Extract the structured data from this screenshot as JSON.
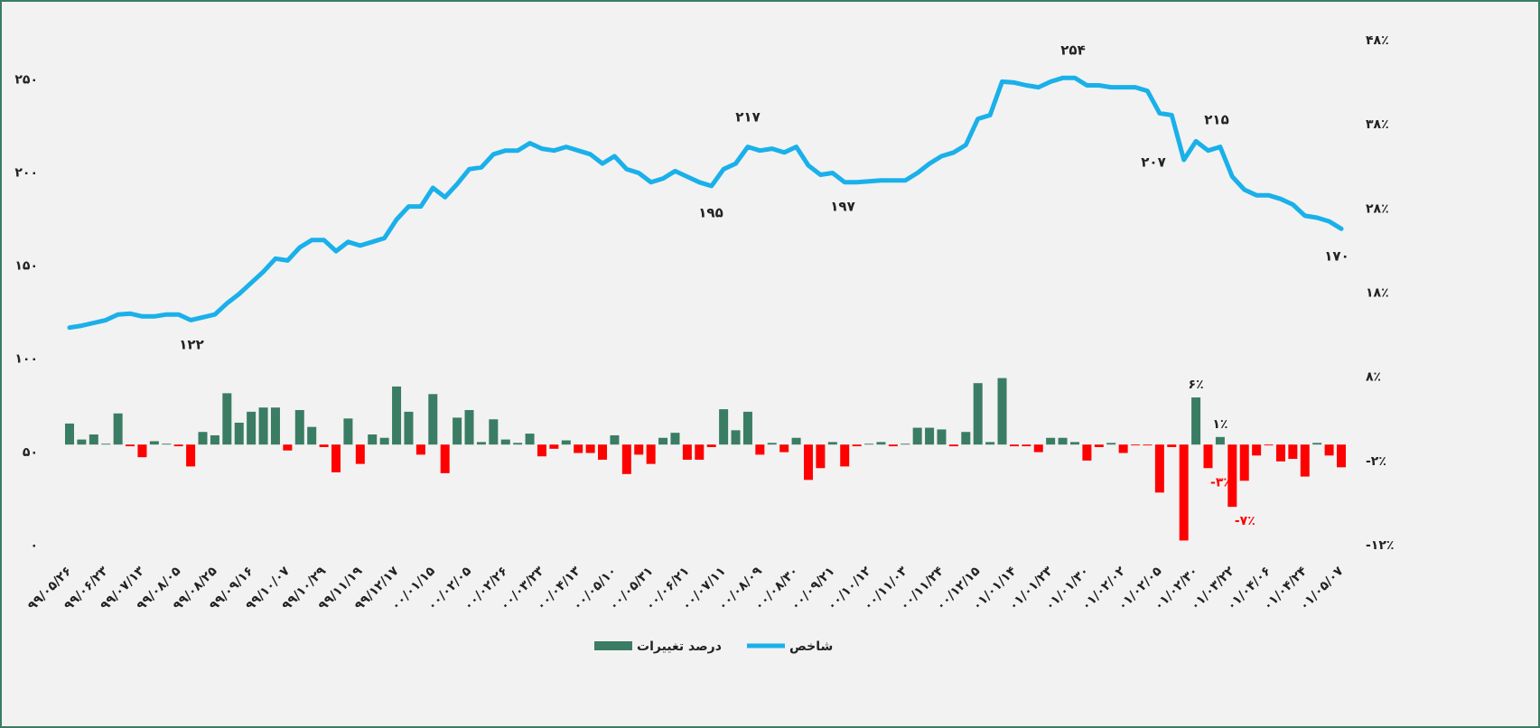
{
  "chart_data": {
    "type": "bar-line",
    "categories": [
      "۹۹/۰۵/۲۶",
      null,
      null,
      "۹۹/۰۶/۲۳",
      null,
      null,
      "۹۹/۰۷/۱۳",
      null,
      null,
      "۹۹/۰۸/۰۵",
      null,
      null,
      "۹۹/۰۸/۲۵",
      null,
      null,
      "۹۹/۰۹/۱۶",
      null,
      null,
      "۹۹/۱۰/۰۷",
      null,
      null,
      "۹۹/۱۰/۲۹",
      null,
      null,
      "۹۹/۱۱/۱۹",
      null,
      null,
      "۹۹/۱۲/۱۷",
      null,
      null,
      "۰۰/۰۱/۱۵",
      null,
      null,
      "۰۰/۰۲/۰۵",
      null,
      null,
      "۰۰/۰۲/۲۶",
      null,
      null,
      "۰۰/۰۳/۲۳",
      null,
      null,
      "۰۰/۰۴/۱۳",
      null,
      null,
      "۰۰/۰۵/۱۰",
      null,
      null,
      "۰۰/۰۵/۳۱",
      null,
      null,
      "۰۰/۰۶/۲۱",
      null,
      null,
      "۰۰/۰۷/۱۱",
      null,
      null,
      "۰۰/۰۸/۰۹",
      null,
      null,
      "۰۰/۰۸/۳۰",
      null,
      null,
      "۰۰/۰۹/۲۱",
      null,
      null,
      "۰۰/۱۰/۱۲",
      null,
      null,
      "۰۰/۱۱/۰۳",
      null,
      null,
      "۰۰/۱۱/۲۴",
      null,
      null,
      "۰۰/۱۲/۱۵",
      null,
      null,
      "۰۱/۰۱/۱۴",
      null,
      null,
      "۰۱/۰۱/۲۳",
      null,
      null,
      "۰۱/۰۱/۳۰",
      null,
      null,
      "۰۱/۰۲/۰۲",
      null,
      null,
      "۰۱/۰۲/۰۵",
      null,
      null,
      "۰۱/۰۲/۳۰",
      null,
      null,
      "۰۱/۰۳/۲۲",
      null,
      null,
      "۰۱/۰۴/۰۶",
      null,
      null,
      "۰۱/۰۴/۲۴",
      null,
      null,
      "۰۱/۰۵/۰۷"
    ],
    "series": [
      {
        "name": "درصد تغییرات",
        "type": "bar",
        "axis": "y2",
        "color": "#3a7d64",
        "negative_color": "#ff0000",
        "values": [
          2.5,
          0.6,
          1.2,
          0.1,
          3.7,
          -0.2,
          -1.5,
          0.4,
          0.1,
          -0.2,
          -2.6,
          1.5,
          1.1,
          6.1,
          2.6,
          3.9,
          4.4,
          4.4,
          -0.7,
          4.1,
          2.1,
          -0.3,
          -3.3,
          3.1,
          -2.3,
          1.2,
          0.8,
          6.9,
          3.9,
          -1.2,
          6.0,
          -3.4,
          3.2,
          4.1,
          0.3,
          3.0,
          0.6,
          0.2,
          1.3,
          -1.4,
          -0.5,
          0.5,
          -1.0,
          -1.0,
          -1.8,
          1.1,
          -3.5,
          -1.2,
          -2.3,
          0.8,
          1.4,
          -1.8,
          -1.8,
          -0.3,
          4.2,
          1.7,
          3.9,
          -1.2,
          0.2,
          -0.9,
          0.8,
          -4.2,
          -2.8,
          0.3,
          -2.6,
          -0.2,
          0.1,
          0.3,
          -0.2,
          0.1,
          2.0,
          2.0,
          1.8,
          -0.2,
          1.5,
          7.3,
          0.3,
          7.9,
          -0.2,
          -0.2,
          -0.9,
          0.8,
          0.8,
          0.3,
          -1.9,
          -0.3,
          0.2,
          -1.0,
          -0.1,
          -0.1,
          -5.7,
          -0.3,
          -11.4,
          5.6,
          -2.8,
          0.9,
          -7.4,
          -4.3,
          -1.3,
          -0.1,
          -2.0,
          -1.7,
          -3.8,
          0.2,
          -1.3,
          -2.7
        ],
        "value_labels": [
          null,
          null,
          null,
          null,
          null,
          null,
          null,
          null,
          null,
          null,
          null,
          null,
          null,
          null,
          null,
          null,
          null,
          null,
          null,
          null,
          null,
          null,
          null,
          null,
          null,
          null,
          null,
          null,
          null,
          null,
          null,
          null,
          null,
          null,
          null,
          null,
          null,
          null,
          null,
          null,
          null,
          null,
          null,
          null,
          null,
          null,
          null,
          null,
          null,
          null,
          null,
          null,
          null,
          null,
          null,
          null,
          null,
          null,
          null,
          null,
          null,
          null,
          null,
          null,
          null,
          null,
          null,
          null,
          null,
          null,
          null,
          null,
          null,
          null,
          null,
          null,
          null,
          null,
          null,
          null,
          null,
          null,
          null,
          null,
          null,
          null,
          null,
          null,
          null,
          null,
          null,
          null,
          null,
          "۶٪",
          "-۳٪",
          "۱٪",
          "-۷٪",
          null,
          null,
          null,
          null,
          null,
          null,
          null,
          null,
          null
        ]
      },
      {
        "name": "شاخص",
        "type": "line",
        "color": "#1ab0ea",
        "values": [
          117,
          118,
          119.5,
          121,
          124,
          124.5,
          123,
          123,
          124,
          124,
          121,
          122.5,
          124,
          130,
          135,
          141,
          147,
          154,
          153,
          160,
          164,
          164,
          158,
          163,
          161,
          163,
          165,
          175,
          182,
          182,
          192,
          187,
          194,
          202,
          203,
          210,
          212,
          212,
          216,
          213,
          212,
          214,
          212,
          210,
          205,
          209,
          202,
          200,
          195,
          197,
          201,
          198,
          195,
          193,
          202,
          205,
          214,
          212,
          213,
          211,
          214,
          204,
          199,
          200,
          195,
          195,
          195.5,
          196,
          196,
          196,
          200,
          205,
          209,
          211,
          215,
          229,
          231,
          249,
          248.5,
          247,
          246,
          249,
          251,
          251,
          247,
          247,
          246,
          246,
          246,
          244,
          232,
          231,
          207,
          217,
          212,
          214,
          198,
          191,
          188,
          188,
          186,
          183,
          177,
          176,
          174,
          170
        ]
      }
    ],
    "annotations": [
      "۱۲۲",
      "۱۹۵",
      "۲۱۷",
      "۱۹۷",
      "۲۵۴",
      "۲۰۷",
      "۲۱۵",
      "۱۷۰"
    ],
    "ylim": [
      0,
      271
    ],
    "yticks": [
      {
        "value": 0,
        "label": "۰"
      },
      {
        "value": 50,
        "label": "۵۰"
      },
      {
        "value": 100,
        "label": "۱۰۰"
      },
      {
        "value": 150,
        "label": "۱۵۰"
      },
      {
        "value": 200,
        "label": "۲۰۰"
      },
      {
        "value": 250,
        "label": "۲۵۰"
      }
    ],
    "y2lim": [
      -12,
      48
    ],
    "y2ticks": [
      {
        "value": -12,
        "label": "-۱۲٪"
      },
      {
        "value": -2,
        "label": "-۲٪"
      },
      {
        "value": 8,
        "label": "۸٪"
      },
      {
        "value": 18,
        "label": "۱۸٪"
      },
      {
        "value": 28,
        "label": "۲۸٪"
      },
      {
        "value": 38,
        "label": "۳۸٪"
      },
      {
        "value": 48,
        "label": "۴۸٪"
      }
    ],
    "legend": "bottom",
    "grid": false
  }
}
